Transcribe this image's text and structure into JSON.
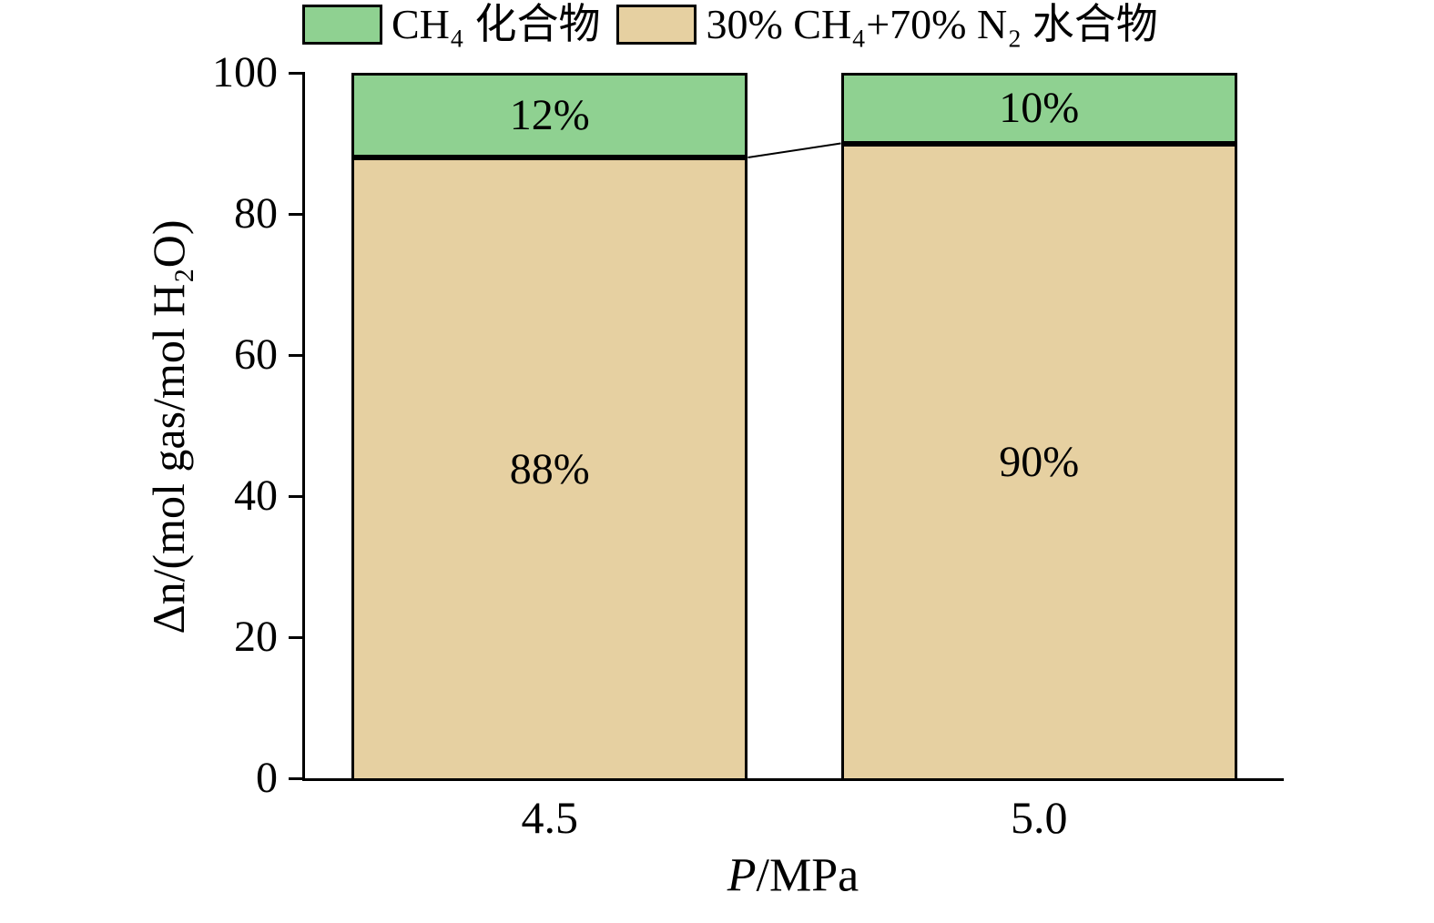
{
  "legend": {
    "items": [
      {
        "label": "CH₄ 化合物",
        "color": "#8fd191"
      },
      {
        "label": "30% CH₄+70% N₂ 水合物",
        "color": "#e6d0a1"
      }
    ]
  },
  "axes": {
    "ylabel": "Δn/(mol gas/mol H₂O)",
    "xlabel_italic": "P",
    "xlabel_rest": "/MPa"
  },
  "chart_data": {
    "type": "bar",
    "stacked": true,
    "categories": [
      "4.5",
      "5.0"
    ],
    "series": [
      {
        "name": "30% CH₄+70% N₂ 水合物",
        "color": "#e6d0a1",
        "values": [
          88,
          90
        ],
        "labels": [
          "88%",
          "90%"
        ]
      },
      {
        "name": "CH₄ 化合物",
        "color": "#8fd191",
        "values": [
          12,
          10
        ],
        "labels": [
          "12%",
          "10%"
        ]
      }
    ],
    "title": "",
    "xlabel": "P/MPa",
    "ylabel": "Δn/(mol gas/mol H₂O)",
    "ylim": [
      0,
      100
    ],
    "yticks": [
      0,
      20,
      40,
      60,
      80,
      100
    ],
    "legend_position": "top",
    "grid": false,
    "connector_between_stacks": true
  }
}
